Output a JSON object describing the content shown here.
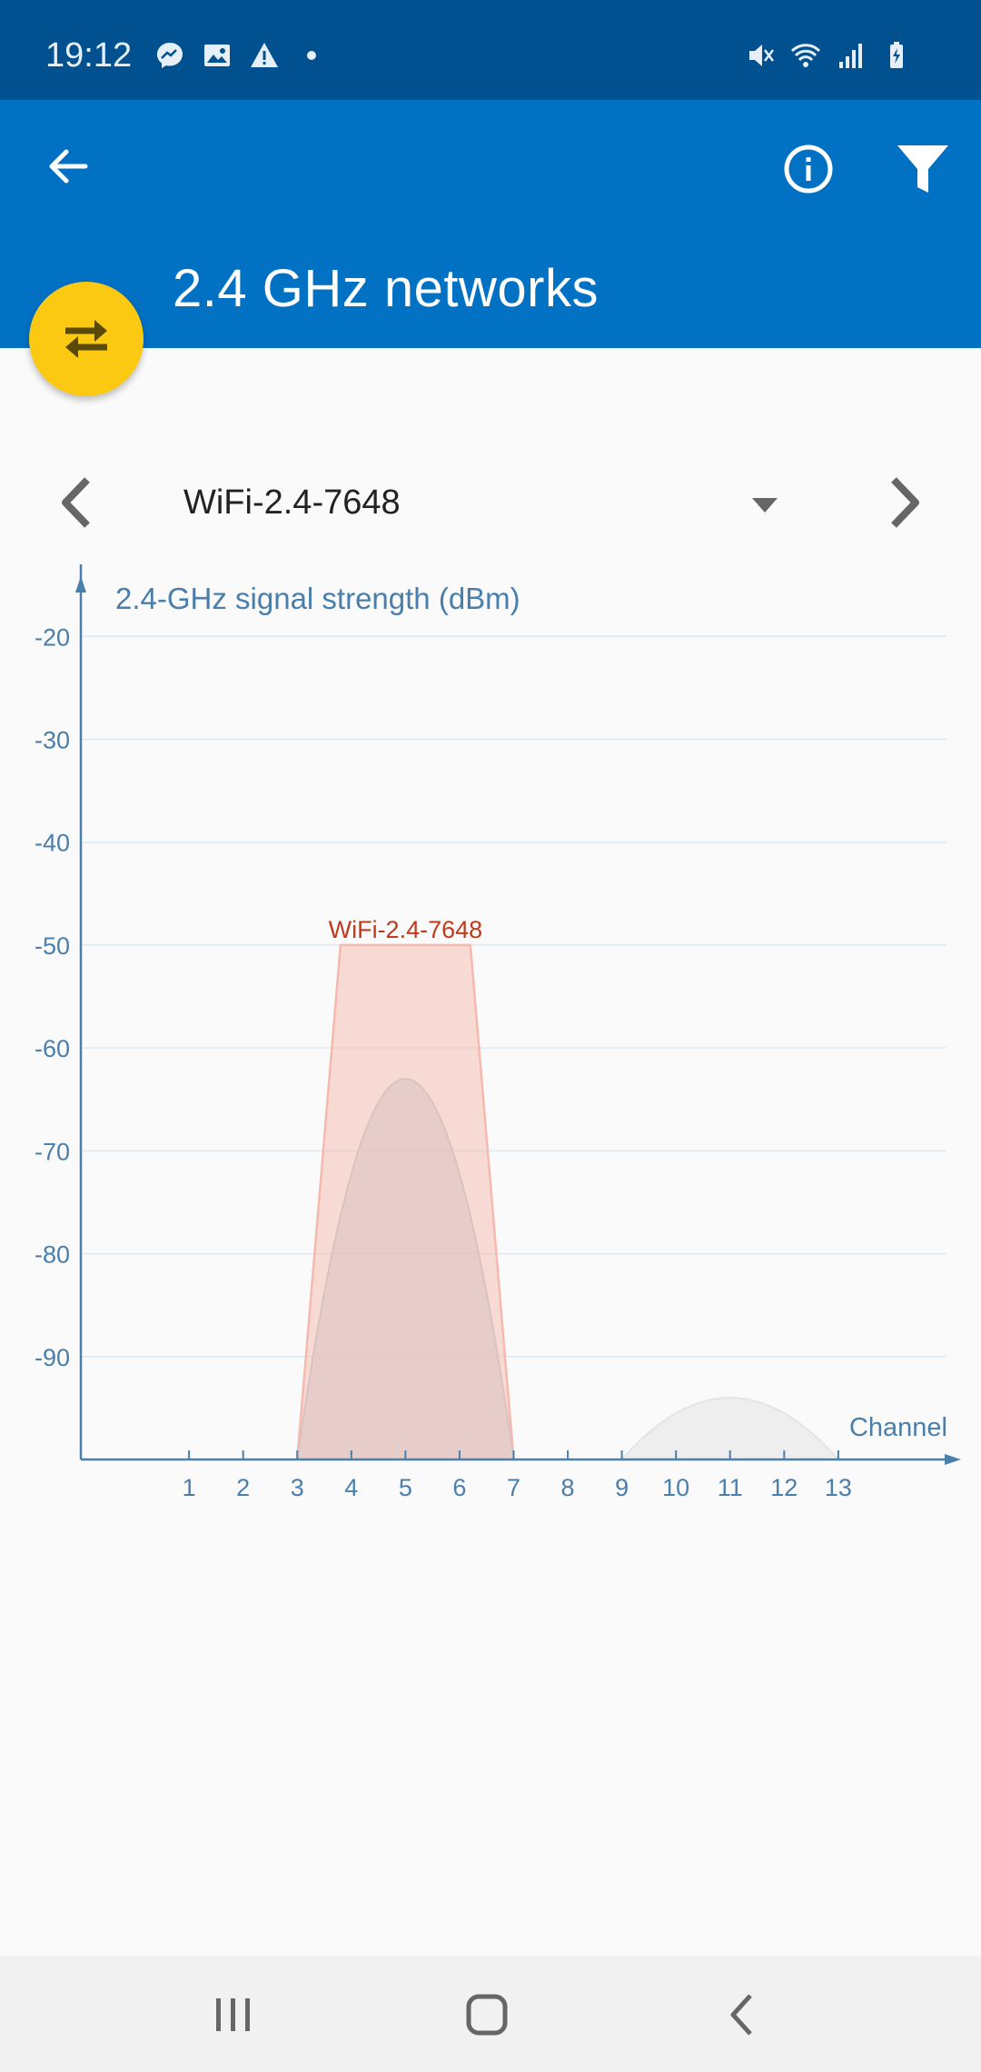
{
  "status_bar": {
    "time": "19:12",
    "left_icons": [
      "messenger-icon",
      "gallery-icon",
      "warning-icon",
      "dot-icon"
    ],
    "right_icons": [
      "mute-icon",
      "wifi-icon",
      "cell-signal-icon",
      "battery-charging-icon"
    ]
  },
  "app_bar": {
    "title": "2.4 GHz networks",
    "back_icon": "arrow-left-icon",
    "info_icon": "info-icon",
    "filter_icon": "filter-icon",
    "fab_icon": "swap-arrows-icon",
    "color": "#0171c4",
    "fab_color": "#fbc912"
  },
  "selector": {
    "value": "WiFi-2.4-7648",
    "prev_icon": "chevron-left-icon",
    "next_icon": "chevron-right-icon"
  },
  "chart_data": {
    "type": "area",
    "ylabel": "2.4-GHz signal strength (dBm)",
    "xlabel": "Channel",
    "y_ticks": [
      -20,
      -30,
      -40,
      -50,
      -60,
      -70,
      -80,
      -90
    ],
    "ylim": [
      -100,
      -13
    ],
    "x_ticks": [
      1,
      2,
      3,
      4,
      5,
      6,
      7,
      8,
      9,
      10,
      11,
      12,
      13
    ],
    "xlim": [
      -1,
      15
    ],
    "grid": true,
    "series": [
      {
        "name": "WiFi-2.4-7648",
        "shape": "trapezoid",
        "channel": 5,
        "start_channel": 3,
        "end_channel": 7,
        "peak_dbm": -50,
        "color": "#f5b9ad",
        "label_color": "#c0391b"
      },
      {
        "shape": "arc",
        "channel": 5,
        "start_channel": 3,
        "end_channel": 7,
        "peak_dbm": -63,
        "color": "#d9c2bf"
      },
      {
        "shape": "arc",
        "channel": 11,
        "start_channel": 9,
        "end_channel": 13,
        "peak_dbm": -94,
        "color": "#e4e4e4"
      }
    ]
  },
  "nav_bar": {
    "recents_icon": "recents-icon",
    "home_icon": "home-icon",
    "back_icon": "back-icon"
  }
}
